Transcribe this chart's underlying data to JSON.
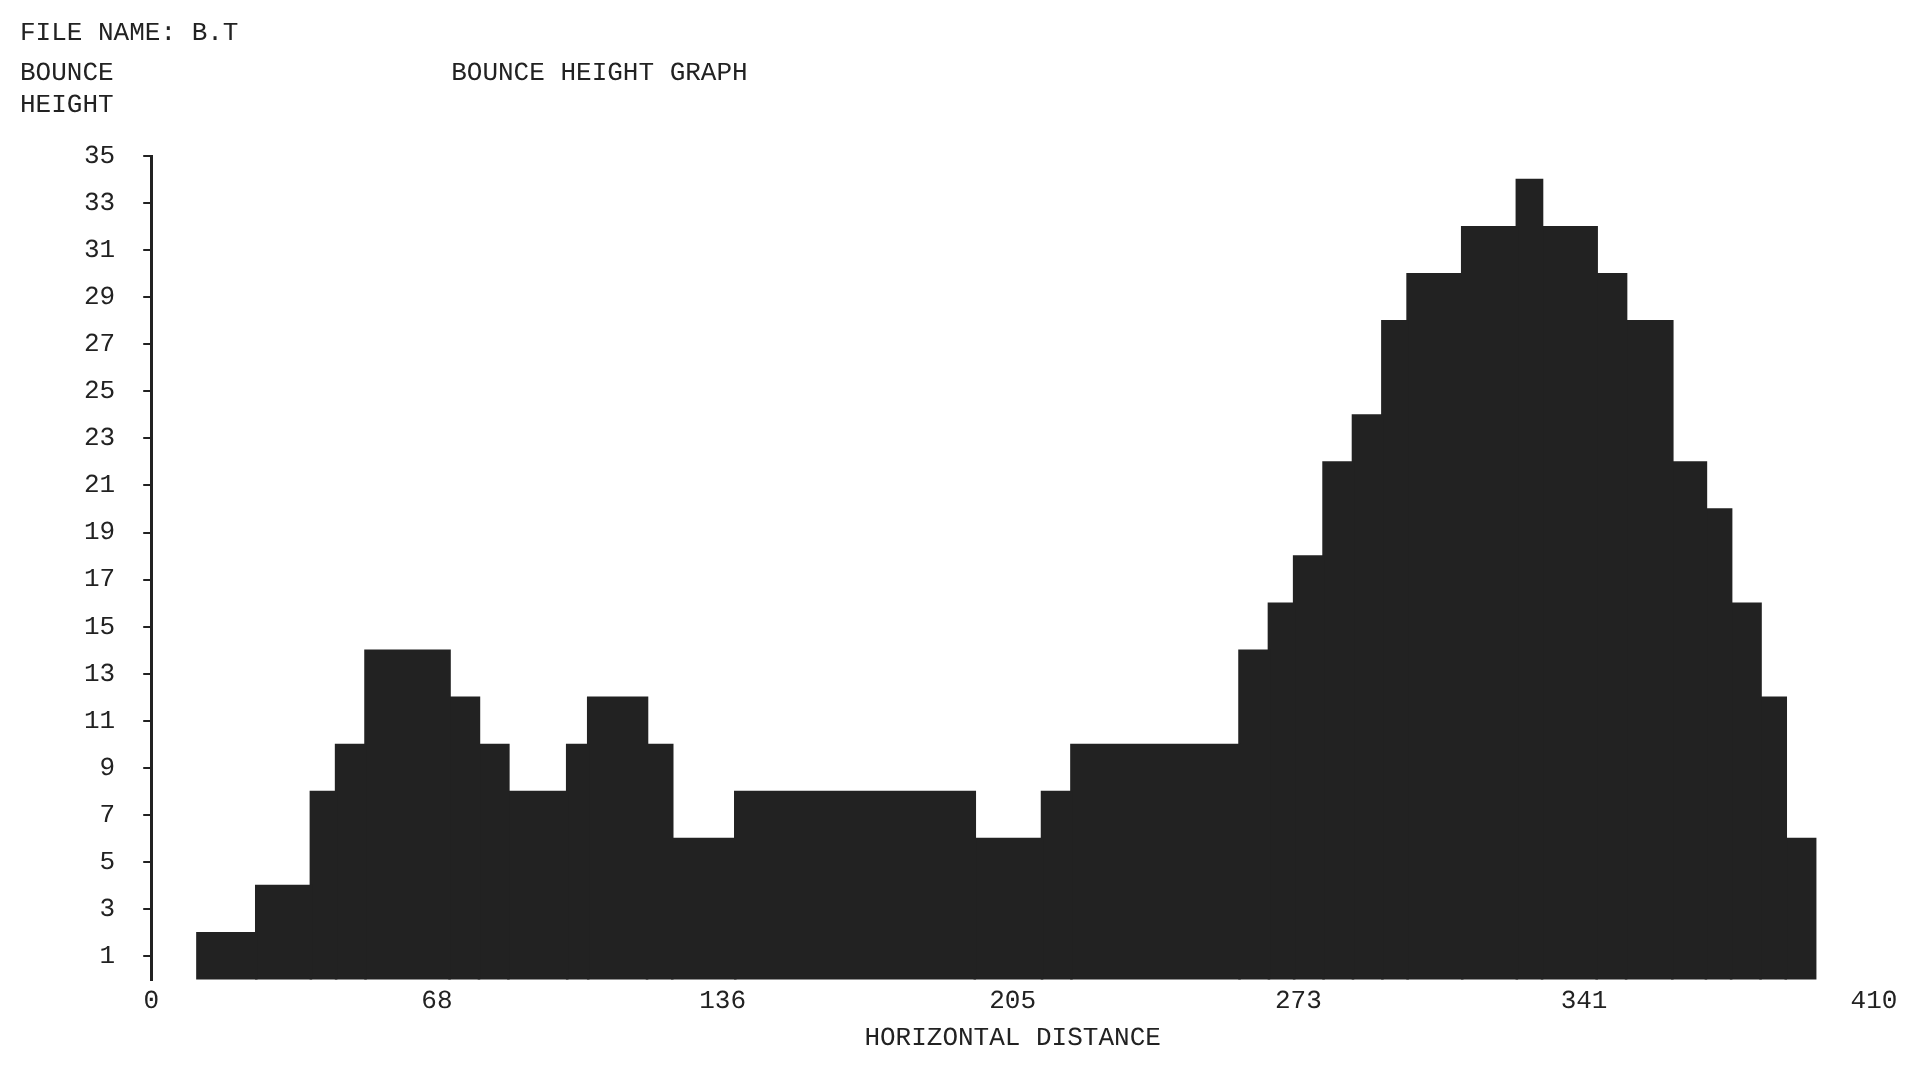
{
  "chart_data": {
    "type": "histogram",
    "title": "BOUNCE HEIGHT GRAPH",
    "xlabel": "HORIZONTAL DISTANCE",
    "ylabel": "BOUNCE HEIGHT",
    "annotations": [
      "FILE NAME: B.T"
    ],
    "bins": [
      11,
      25,
      38,
      44,
      51,
      71,
      78,
      85,
      99,
      104,
      118,
      124,
      139,
      196,
      212,
      219,
      259,
      266,
      272,
      279,
      286,
      293,
      299,
      312,
      325,
      331,
      344,
      351,
      362,
      370,
      376,
      383,
      389,
      396
    ],
    "values": [
      2,
      4,
      8,
      10,
      14,
      12,
      10,
      8,
      10,
      12,
      10,
      6,
      8,
      6,
      8,
      10,
      14,
      16,
      18,
      22,
      24,
      28,
      30,
      32,
      34,
      32,
      30,
      28,
      22,
      20,
      16,
      12,
      6
    ],
    "color": "#222222",
    "xlim": [
      0,
      410
    ],
    "xticks": [
      0,
      68,
      136,
      205,
      273,
      341,
      410
    ],
    "ylim": [
      0,
      35
    ],
    "yticks": [
      1,
      3,
      5,
      7,
      9,
      11,
      13,
      15,
      17,
      19,
      21,
      23,
      25,
      27,
      29,
      31,
      33,
      35
    ],
    "grid": false,
    "legend": false
  }
}
